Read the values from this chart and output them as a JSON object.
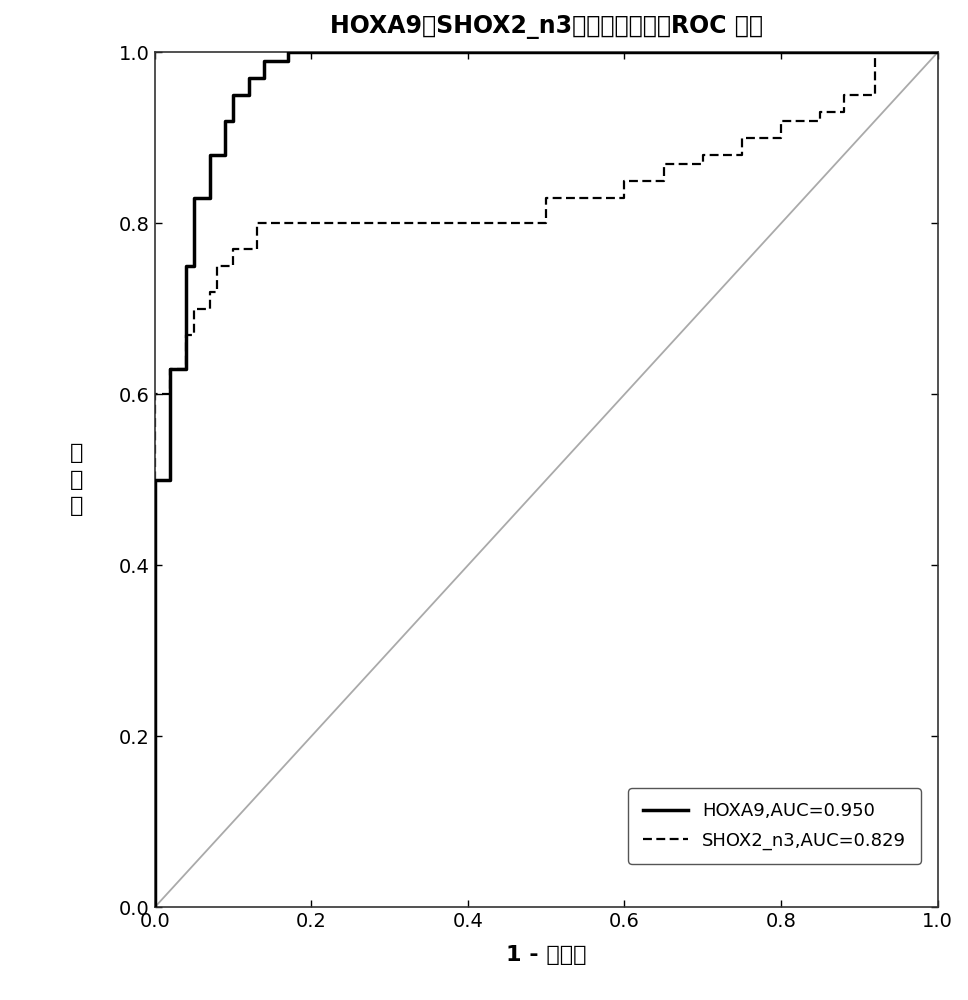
{
  "title": "HOXA9和SHOX2_n3在痰液中检测的ROC 曲线",
  "xlabel": "1 - 特异性",
  "ylabel_chars": [
    "敏",
    "感",
    "度"
  ],
  "xlim": [
    0.0,
    1.0
  ],
  "ylim": [
    0.0,
    1.0
  ],
  "xticks": [
    0.0,
    0.2,
    0.4,
    0.6,
    0.8,
    1.0
  ],
  "yticks": [
    0.0,
    0.2,
    0.4,
    0.6,
    0.8,
    1.0
  ],
  "background_color": "#ffffff",
  "diagonal_color": "#aaaaaa",
  "hoxa9_color": "#000000",
  "shox2_color": "#000000",
  "hoxa9_label": "HOXA9,AUC=0.950",
  "shox2_label": "SHOX2_n3,AUC=0.829",
  "hoxa9_x": [
    0.0,
    0.0,
    0.02,
    0.02,
    0.04,
    0.04,
    0.05,
    0.05,
    0.07,
    0.07,
    0.09,
    0.09,
    0.1,
    0.1,
    0.12,
    0.12,
    0.14,
    0.14,
    0.17,
    0.17,
    0.2,
    0.2,
    0.5,
    0.5,
    1.0
  ],
  "hoxa9_y": [
    0.0,
    0.5,
    0.5,
    0.63,
    0.63,
    0.75,
    0.75,
    0.83,
    0.83,
    0.88,
    0.88,
    0.92,
    0.92,
    0.95,
    0.95,
    0.97,
    0.97,
    0.99,
    0.99,
    1.0,
    1.0,
    1.0,
    1.0,
    1.0,
    1.0
  ],
  "shox2_x": [
    0.0,
    0.0,
    0.02,
    0.02,
    0.04,
    0.04,
    0.05,
    0.05,
    0.07,
    0.07,
    0.08,
    0.08,
    0.1,
    0.1,
    0.13,
    0.13,
    0.17,
    0.17,
    0.2,
    0.2,
    0.5,
    0.5,
    0.6,
    0.6,
    0.65,
    0.65,
    0.7,
    0.7,
    0.75,
    0.75,
    0.8,
    0.8,
    0.85,
    0.85,
    0.88,
    0.88,
    0.92,
    0.92,
    1.0,
    1.0
  ],
  "shox2_y": [
    0.0,
    0.6,
    0.6,
    0.63,
    0.63,
    0.67,
    0.67,
    0.7,
    0.7,
    0.72,
    0.72,
    0.75,
    0.75,
    0.77,
    0.77,
    0.8,
    0.8,
    0.8,
    0.8,
    0.8,
    0.8,
    0.83,
    0.83,
    0.85,
    0.85,
    0.87,
    0.87,
    0.88,
    0.88,
    0.9,
    0.9,
    0.92,
    0.92,
    0.93,
    0.93,
    0.95,
    0.95,
    1.0,
    1.0,
    1.0
  ]
}
